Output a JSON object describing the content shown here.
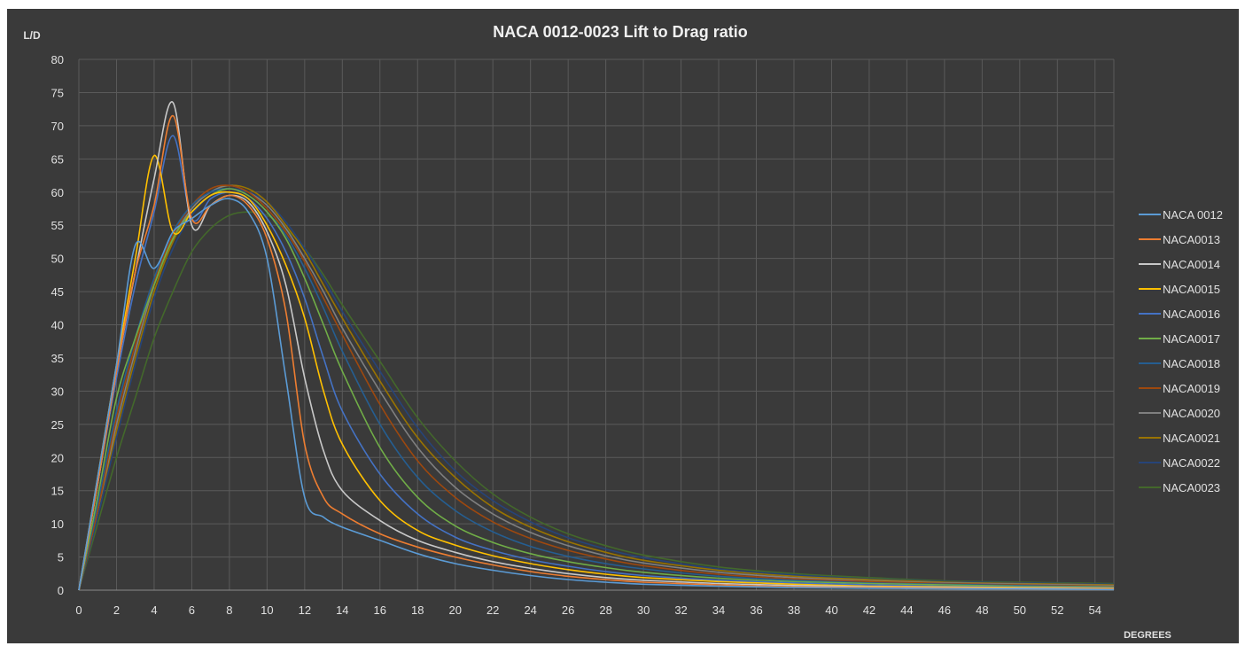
{
  "chart_data": {
    "type": "line",
    "title": "NACA 0012-0023 Lift to Drag ratio",
    "ylabel": "L/D",
    "xlabel": "DEGREES",
    "xlim": [
      0,
      55
    ],
    "ylim": [
      0,
      80
    ],
    "xticks": [
      0,
      2,
      4,
      6,
      8,
      10,
      12,
      14,
      16,
      18,
      20,
      22,
      24,
      26,
      28,
      30,
      32,
      34,
      36,
      38,
      40,
      42,
      44,
      46,
      48,
      50,
      52,
      54
    ],
    "yticks": [
      0,
      5,
      10,
      15,
      20,
      25,
      30,
      35,
      40,
      45,
      50,
      55,
      60,
      65,
      70,
      75,
      80
    ],
    "grid": true,
    "legend_position": "right",
    "background": "#3a3a3a",
    "series": [
      {
        "name": "NACA 0012",
        "color": "#5b9bd5",
        "x": [
          0,
          1,
          2,
          3,
          4,
          5,
          6,
          7,
          8,
          9,
          10,
          11,
          12,
          13,
          14,
          16,
          18,
          20,
          22,
          24,
          26,
          28,
          30,
          34,
          38,
          42,
          46,
          50,
          55
        ],
        "y": [
          0,
          17,
          34,
          52,
          48.5,
          54,
          56,
          58,
          59,
          57,
          50,
          32,
          14,
          11,
          9.5,
          7.5,
          5.5,
          4,
          3,
          2.2,
          1.6,
          1.2,
          0.9,
          0.6,
          0.4,
          0.3,
          0.2,
          0.2,
          0.1
        ]
      },
      {
        "name": "NACA0013",
        "color": "#ed7d31",
        "x": [
          0,
          1,
          2,
          3,
          4,
          5,
          6,
          7,
          8,
          9,
          10,
          11,
          12,
          13,
          14,
          16,
          18,
          20,
          22,
          24,
          26,
          28,
          30,
          34,
          38,
          42,
          46,
          50,
          55
        ],
        "y": [
          0,
          16,
          33,
          48,
          58,
          71.5,
          56,
          58,
          59.5,
          58,
          53,
          42,
          22,
          14,
          11.5,
          8.5,
          6.5,
          5,
          3.8,
          2.8,
          2.1,
          1.6,
          1.2,
          0.8,
          0.5,
          0.4,
          0.3,
          0.2,
          0.2
        ]
      },
      {
        "name": "NACA0014",
        "color": "#c8c8c8",
        "x": [
          0,
          1,
          2,
          3,
          4,
          5,
          6,
          7,
          8,
          9,
          10,
          11,
          12,
          13,
          14,
          16,
          18,
          20,
          22,
          24,
          26,
          28,
          30,
          34,
          38,
          42,
          46,
          50,
          55
        ],
        "y": [
          0,
          16,
          33,
          48,
          62,
          73.5,
          55,
          58,
          59.5,
          58.5,
          54,
          46,
          32,
          21,
          15,
          10.5,
          7.5,
          5.7,
          4.3,
          3.3,
          2.5,
          1.9,
          1.5,
          1,
          0.7,
          0.5,
          0.4,
          0.3,
          0.2
        ]
      },
      {
        "name": "NACA0015",
        "color": "#ffc000",
        "x": [
          0,
          1,
          2,
          3,
          4,
          5,
          6,
          7,
          8,
          9,
          10,
          11,
          12,
          13,
          14,
          16,
          18,
          20,
          22,
          24,
          26,
          28,
          30,
          34,
          38,
          42,
          46,
          50,
          55
        ],
        "y": [
          0,
          17,
          34,
          50,
          65.5,
          54,
          57,
          59.5,
          60,
          59,
          55,
          49,
          41,
          30,
          22,
          13.5,
          9,
          6.8,
          5.2,
          4,
          3.1,
          2.4,
          1.9,
          1.3,
          0.9,
          0.6,
          0.5,
          0.4,
          0.3
        ]
      },
      {
        "name": "NACA0016",
        "color": "#4472c4",
        "x": [
          0,
          1,
          2,
          3,
          4,
          5,
          6,
          7,
          8,
          9,
          10,
          11,
          12,
          13,
          14,
          16,
          18,
          20,
          22,
          24,
          26,
          28,
          30,
          34,
          38,
          42,
          46,
          50,
          55
        ],
        "y": [
          0,
          16,
          32,
          46,
          57,
          68.5,
          56,
          59,
          60,
          59,
          56,
          51,
          44,
          35,
          27,
          17.5,
          11.5,
          8,
          6,
          4.6,
          3.6,
          2.8,
          2.2,
          1.5,
          1.1,
          0.8,
          0.6,
          0.5,
          0.4
        ]
      },
      {
        "name": "NACA0017",
        "color": "#70ad47",
        "x": [
          0,
          1,
          2,
          3,
          4,
          5,
          6,
          7,
          8,
          9,
          10,
          11,
          12,
          13,
          14,
          16,
          18,
          20,
          22,
          24,
          26,
          28,
          30,
          34,
          38,
          42,
          46,
          50,
          55
        ],
        "y": [
          0,
          14,
          29,
          38,
          46,
          53,
          57,
          59.5,
          60.5,
          59.5,
          57,
          53,
          47,
          40,
          33,
          21.5,
          14,
          9.7,
          7.2,
          5.5,
          4.3,
          3.4,
          2.7,
          1.8,
          1.3,
          1,
          0.8,
          0.6,
          0.5
        ]
      },
      {
        "name": "NACA0018",
        "color": "#255e91",
        "x": [
          0,
          1,
          2,
          3,
          4,
          5,
          6,
          7,
          8,
          9,
          10,
          11,
          12,
          13,
          14,
          16,
          18,
          20,
          22,
          24,
          26,
          28,
          30,
          34,
          38,
          42,
          46,
          50,
          55
        ],
        "y": [
          0,
          13,
          27,
          38,
          47,
          54,
          58,
          60,
          60.5,
          59.5,
          57,
          53.5,
          48.5,
          42.5,
          36,
          25,
          17,
          12,
          8.8,
          6.6,
          5.1,
          4,
          3.2,
          2.1,
          1.5,
          1.1,
          0.9,
          0.7,
          0.5
        ]
      },
      {
        "name": "NACA0019",
        "color": "#9e480e",
        "x": [
          0,
          1,
          2,
          3,
          4,
          5,
          6,
          7,
          8,
          9,
          10,
          11,
          12,
          13,
          14,
          16,
          18,
          20,
          22,
          24,
          26,
          28,
          30,
          34,
          38,
          42,
          46,
          50,
          55
        ],
        "y": [
          0,
          12,
          26,
          37,
          46.5,
          53.5,
          58,
          60.5,
          61,
          60,
          57.5,
          54,
          49.5,
          44,
          38.5,
          28,
          19.5,
          14,
          10.3,
          7.8,
          6,
          4.7,
          3.7,
          2.4,
          1.7,
          1.3,
          1,
          0.8,
          0.6
        ]
      },
      {
        "name": "NACA0020",
        "color": "#7f7f7f",
        "x": [
          0,
          1,
          2,
          3,
          4,
          5,
          6,
          7,
          8,
          9,
          10,
          11,
          12,
          13,
          14,
          16,
          18,
          20,
          22,
          24,
          26,
          28,
          30,
          34,
          38,
          42,
          46,
          50,
          55
        ],
        "y": [
          0,
          12,
          25,
          36,
          46,
          53,
          57.5,
          60,
          61,
          60,
          58,
          54.5,
          50,
          45,
          39.5,
          30,
          21.5,
          15.5,
          11.5,
          8.7,
          6.7,
          5.2,
          4.1,
          2.7,
          1.9,
          1.4,
          1.1,
          0.9,
          0.7
        ]
      },
      {
        "name": "NACA0021",
        "color": "#997300",
        "x": [
          0,
          1,
          2,
          3,
          4,
          5,
          6,
          7,
          8,
          9,
          10,
          11,
          12,
          13,
          14,
          16,
          18,
          20,
          22,
          24,
          26,
          28,
          30,
          34,
          38,
          42,
          46,
          50,
          55
        ],
        "y": [
          0,
          12,
          24,
          35,
          45,
          52.5,
          57.5,
          60,
          61,
          60.5,
          58.5,
          55,
          51,
          46,
          41,
          31.5,
          23,
          17,
          12.5,
          9.5,
          7.3,
          5.7,
          4.5,
          3,
          2.1,
          1.6,
          1.2,
          1,
          0.8
        ]
      },
      {
        "name": "NACA0022",
        "color": "#264478",
        "x": [
          0,
          1,
          2,
          3,
          4,
          5,
          6,
          7,
          8,
          9,
          10,
          11,
          12,
          13,
          14,
          16,
          18,
          20,
          22,
          24,
          26,
          28,
          30,
          34,
          38,
          42,
          46,
          50,
          55
        ],
        "y": [
          0,
          11,
          23,
          34,
          44,
          51.5,
          56.5,
          59.5,
          60.5,
          60,
          58.5,
          55.5,
          51.5,
          47,
          42,
          33,
          24.5,
          18,
          13.5,
          10.3,
          7.9,
          6.2,
          4.9,
          3.2,
          2.3,
          1.7,
          1.3,
          1.1,
          0.9
        ]
      },
      {
        "name": "NACA0023",
        "color": "#43682b",
        "x": [
          0,
          1,
          2,
          3,
          4,
          5,
          6,
          7,
          8,
          9,
          10,
          11,
          12,
          13,
          14,
          16,
          18,
          20,
          22,
          24,
          26,
          28,
          30,
          34,
          38,
          42,
          46,
          50,
          55
        ],
        "y": [
          0,
          10,
          20,
          29,
          38,
          45,
          51,
          54.5,
          56.5,
          57,
          56.5,
          54.5,
          51.5,
          47.5,
          43,
          34.5,
          26,
          19.5,
          14.5,
          11,
          8.5,
          6.7,
          5.3,
          3.5,
          2.5,
          1.9,
          1.4,
          1.2,
          1
        ]
      }
    ]
  }
}
